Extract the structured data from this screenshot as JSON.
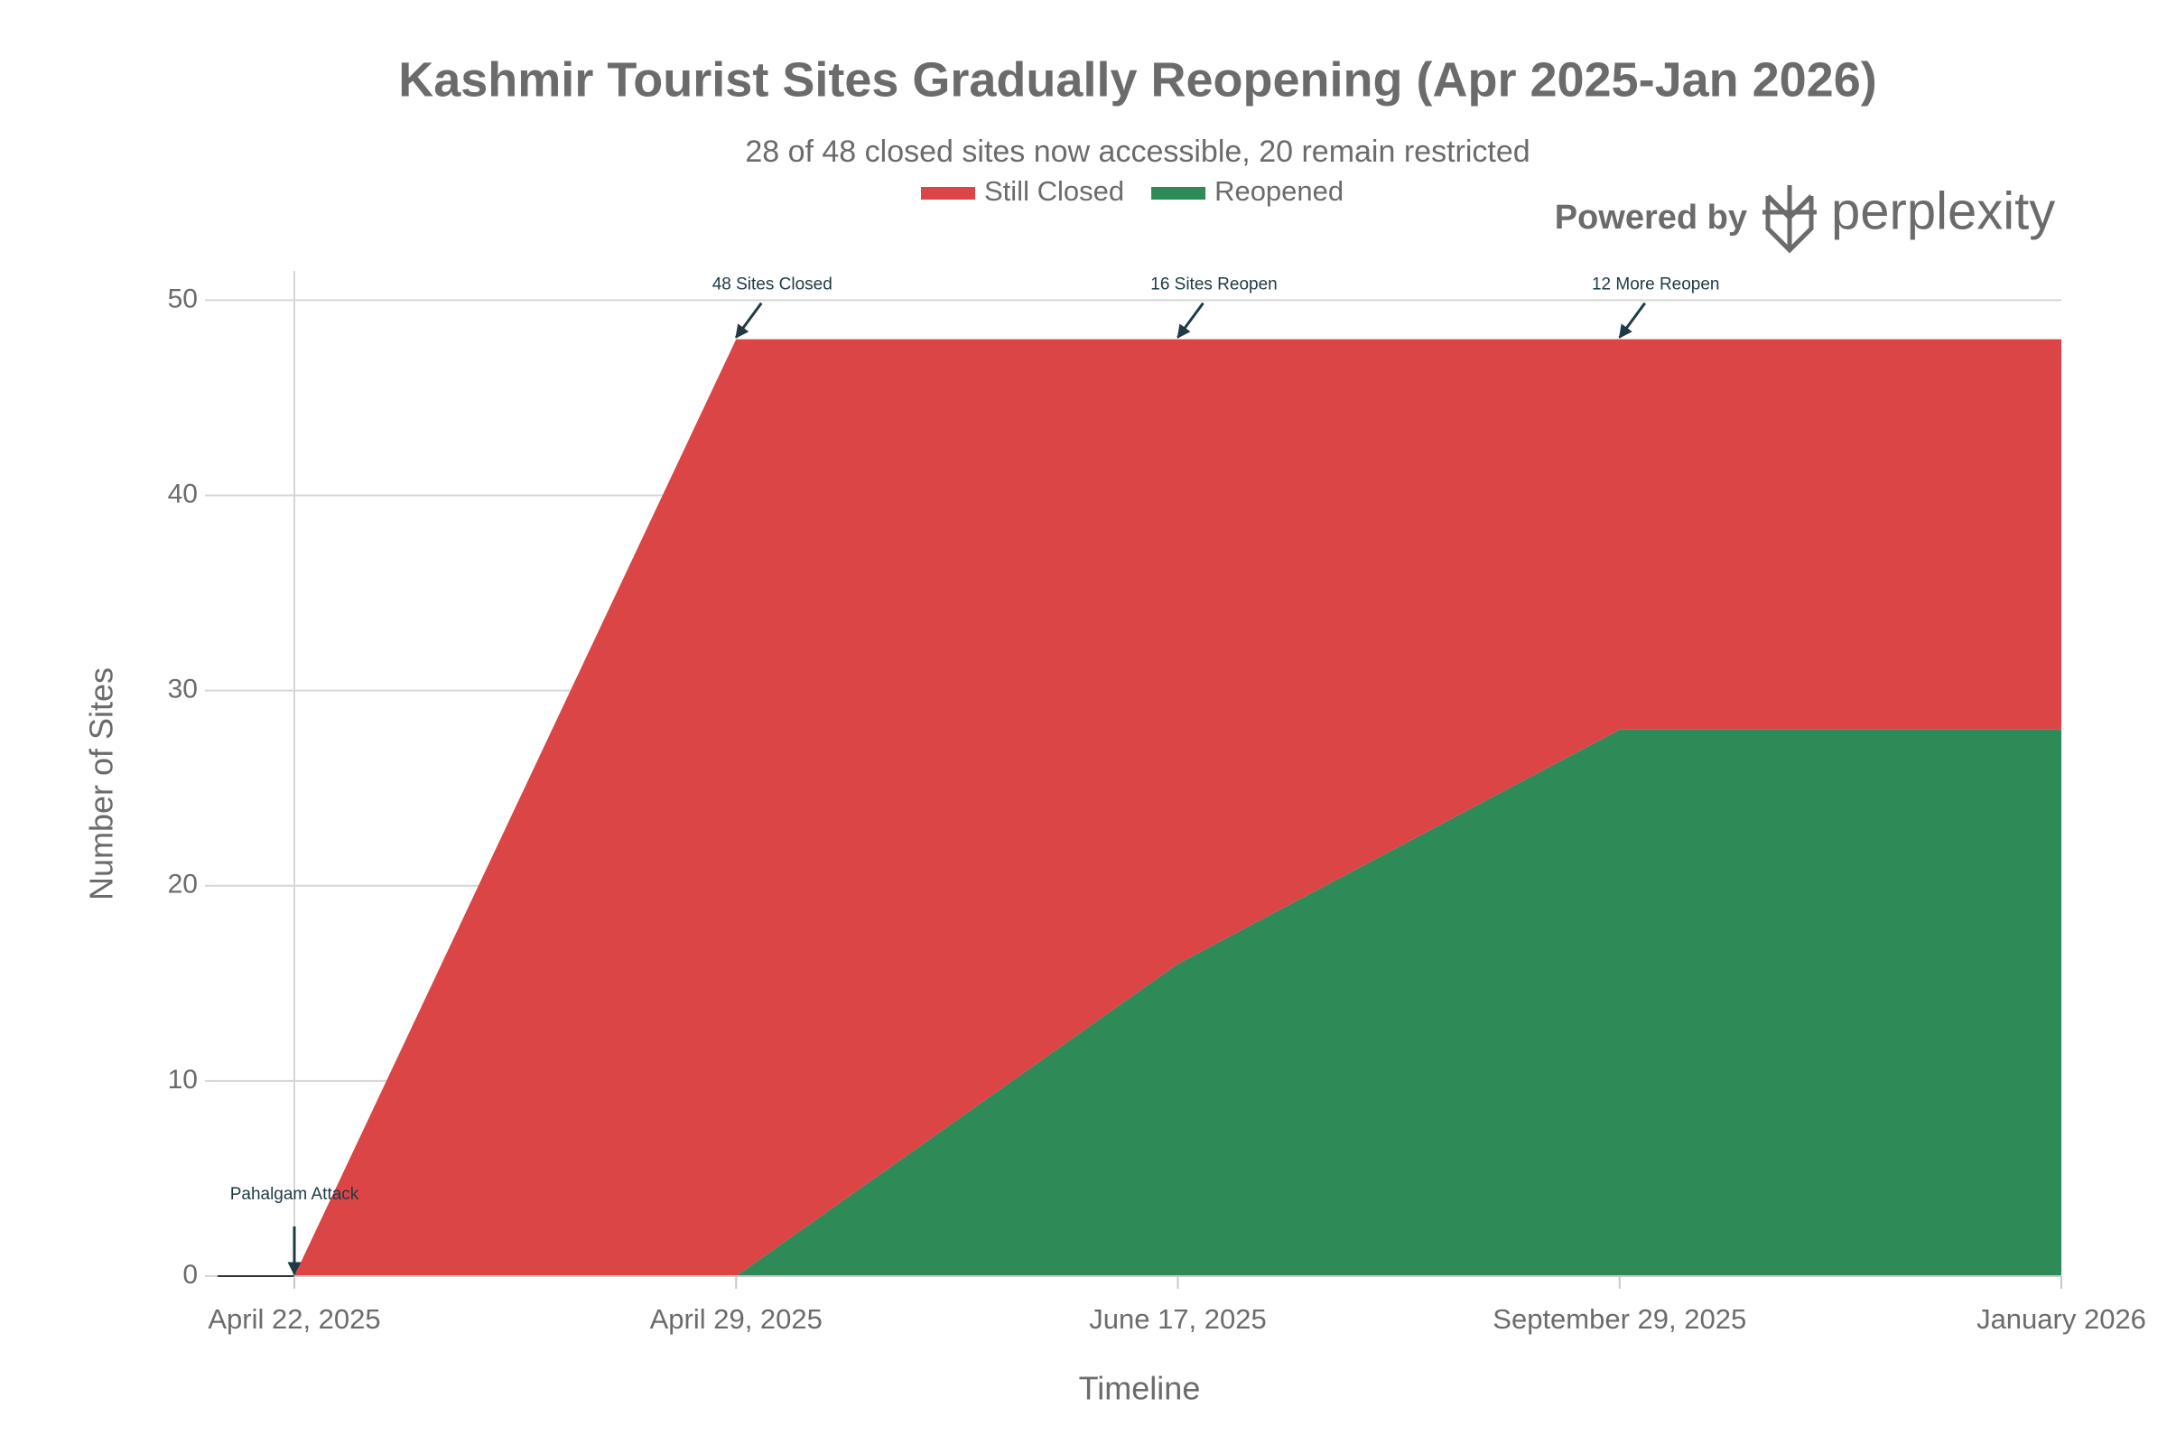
{
  "chart_data": {
    "type": "stacked_area",
    "title": "Kashmir Tourist Sites Gradually Reopening (Apr 2025-Jan 2026)",
    "subtitle": "28 of 48 closed sites now accessible, 20 remain restricted",
    "x_label": "Timeline",
    "y_label": "Number of Sites",
    "categories": [
      "April 22, 2025",
      "April 29, 2025",
      "June 17, 2025",
      "September 29, 2025",
      "January 2026"
    ],
    "series": [
      {
        "name": "Still Closed",
        "color": "#db4545",
        "values": [
          0,
          48,
          32,
          20,
          20
        ]
      },
      {
        "name": "Reopened",
        "color": "#2e8b57",
        "values": [
          0,
          0,
          16,
          28,
          28
        ]
      }
    ],
    "ylim": [
      0,
      51.5
    ],
    "yticks": [
      0,
      10,
      20,
      30,
      40,
      50
    ],
    "grid": true,
    "annotations": [
      {
        "text": "Pahalgam Attack",
        "x": "April 22, 2025",
        "y": 0
      },
      {
        "text": "48 Sites Closed",
        "x": "April 29, 2025",
        "y": 48
      },
      {
        "text": "16 Sites Reopen",
        "x": "June 17, 2025",
        "y": 48
      },
      {
        "text": "12 More Reopen",
        "x": "September 29, 2025",
        "y": 48
      }
    ],
    "watermark": [
      "Powered by",
      "perplexity"
    ]
  }
}
